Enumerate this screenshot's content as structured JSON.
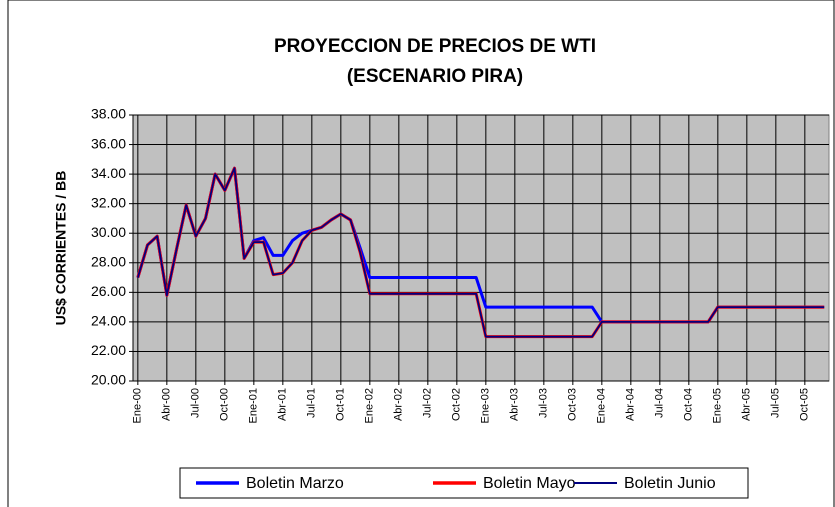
{
  "chart_data": {
    "type": "line",
    "title": [
      "PROYECCION DE PRECIOS DE WTI",
      "(ESCENARIO PIRA)"
    ],
    "y_label": "US$ CORRIENTES / BB",
    "categories": [
      "Ene-00",
      null,
      null,
      "Abr-00",
      null,
      null,
      "Jul-00",
      null,
      null,
      "Oct-00",
      null,
      null,
      "Ene-01",
      null,
      null,
      "Abr-01",
      null,
      null,
      "Jul-01",
      null,
      null,
      "Oct-01",
      null,
      null,
      "Ene-02",
      null,
      null,
      "Abr-02",
      null,
      null,
      "Jul-02",
      null,
      null,
      "Oct-02",
      null,
      null,
      "Ene-03",
      null,
      null,
      "Abr-03",
      null,
      null,
      "Jul-03",
      null,
      null,
      "Oct-03",
      null,
      null,
      "Ene-04",
      null,
      null,
      "Abr-04",
      null,
      null,
      "Jul-04",
      null,
      null,
      "Oct-04",
      null,
      null,
      "Ene-05",
      null,
      null,
      "Abr-05",
      null,
      null,
      "Jul-05",
      null,
      null,
      "Oct-05",
      null,
      null
    ],
    "series": [
      {
        "name": "Boletin Marzo",
        "color": "#0000ff",
        "values": [
          27.0,
          29.2,
          29.8,
          25.8,
          28.9,
          31.9,
          29.8,
          31.0,
          34.0,
          32.9,
          34.4,
          28.3,
          29.5,
          29.7,
          28.5,
          28.5,
          29.5,
          30.0,
          30.2,
          30.4,
          30.9,
          31.3,
          30.9,
          29.0,
          27.0,
          27.0,
          27.0,
          27.0,
          27.0,
          27.0,
          27.0,
          27.0,
          27.0,
          27.0,
          27.0,
          27.0,
          25.0,
          25.0,
          25.0,
          25.0,
          25.0,
          25.0,
          25.0,
          25.0,
          25.0,
          25.0,
          25.0,
          25.0,
          24.0,
          24.0,
          24.0,
          24.0,
          24.0,
          24.0,
          24.0,
          24.0,
          24.0,
          24.0,
          24.0,
          24.0,
          25.0,
          25.0,
          25.0,
          25.0,
          25.0,
          25.0,
          25.0,
          25.0,
          25.0,
          25.0,
          25.0,
          25.0
        ]
      },
      {
        "name": "Boletin Mayo",
        "color": "#ff0000",
        "values": [
          27.0,
          29.2,
          29.8,
          25.8,
          28.9,
          31.9,
          29.8,
          31.0,
          34.0,
          32.9,
          34.4,
          28.3,
          29.4,
          29.4,
          27.2,
          27.3,
          28.0,
          29.5,
          30.2,
          30.4,
          30.9,
          31.3,
          30.9,
          28.7,
          25.9,
          25.9,
          25.9,
          25.9,
          25.9,
          25.9,
          25.9,
          25.9,
          25.9,
          25.9,
          25.9,
          25.9,
          23.0,
          23.0,
          23.0,
          23.0,
          23.0,
          23.0,
          23.0,
          23.0,
          23.0,
          23.0,
          23.0,
          23.0,
          24.0,
          24.0,
          24.0,
          24.0,
          24.0,
          24.0,
          24.0,
          24.0,
          24.0,
          24.0,
          24.0,
          24.0,
          25.0,
          25.0,
          25.0,
          25.0,
          25.0,
          25.0,
          25.0,
          25.0,
          25.0,
          25.0,
          25.0,
          25.0
        ]
      },
      {
        "name": "Boletin Junio",
        "color": "#000080",
        "values": [
          27.0,
          29.2,
          29.8,
          25.8,
          28.9,
          31.9,
          29.8,
          31.0,
          34.0,
          32.9,
          34.4,
          28.3,
          29.4,
          29.4,
          27.2,
          27.3,
          28.0,
          29.5,
          30.2,
          30.4,
          30.9,
          31.3,
          30.9,
          28.7,
          25.9,
          25.9,
          25.9,
          25.9,
          25.9,
          25.9,
          25.9,
          25.9,
          25.9,
          25.9,
          25.9,
          25.9,
          23.0,
          23.0,
          23.0,
          23.0,
          23.0,
          23.0,
          23.0,
          23.0,
          23.0,
          23.0,
          23.0,
          23.0,
          24.0,
          24.0,
          24.0,
          24.0,
          24.0,
          24.0,
          24.0,
          24.0,
          24.0,
          24.0,
          24.0,
          24.0,
          25.0,
          25.0,
          25.0,
          25.0,
          25.0,
          25.0,
          25.0,
          25.0,
          25.0,
          25.0,
          25.0,
          25.0
        ]
      }
    ],
    "ylim": [
      20,
      38
    ],
    "yticks": [
      {
        "value": 20,
        "label": "20.00"
      },
      {
        "value": 22,
        "label": "22.00"
      },
      {
        "value": 24,
        "label": "24.00"
      },
      {
        "value": 26,
        "label": "26.00"
      },
      {
        "value": 28,
        "label": "28.00"
      },
      {
        "value": 30,
        "label": "30.00"
      },
      {
        "value": 32,
        "label": "32.00"
      },
      {
        "value": 34,
        "label": "34.00"
      },
      {
        "value": 36,
        "label": "36.00"
      },
      {
        "value": 38,
        "label": "38.00"
      }
    ],
    "grid": true,
    "plot_background": "#c0c0c0",
    "legend": "bottom"
  }
}
